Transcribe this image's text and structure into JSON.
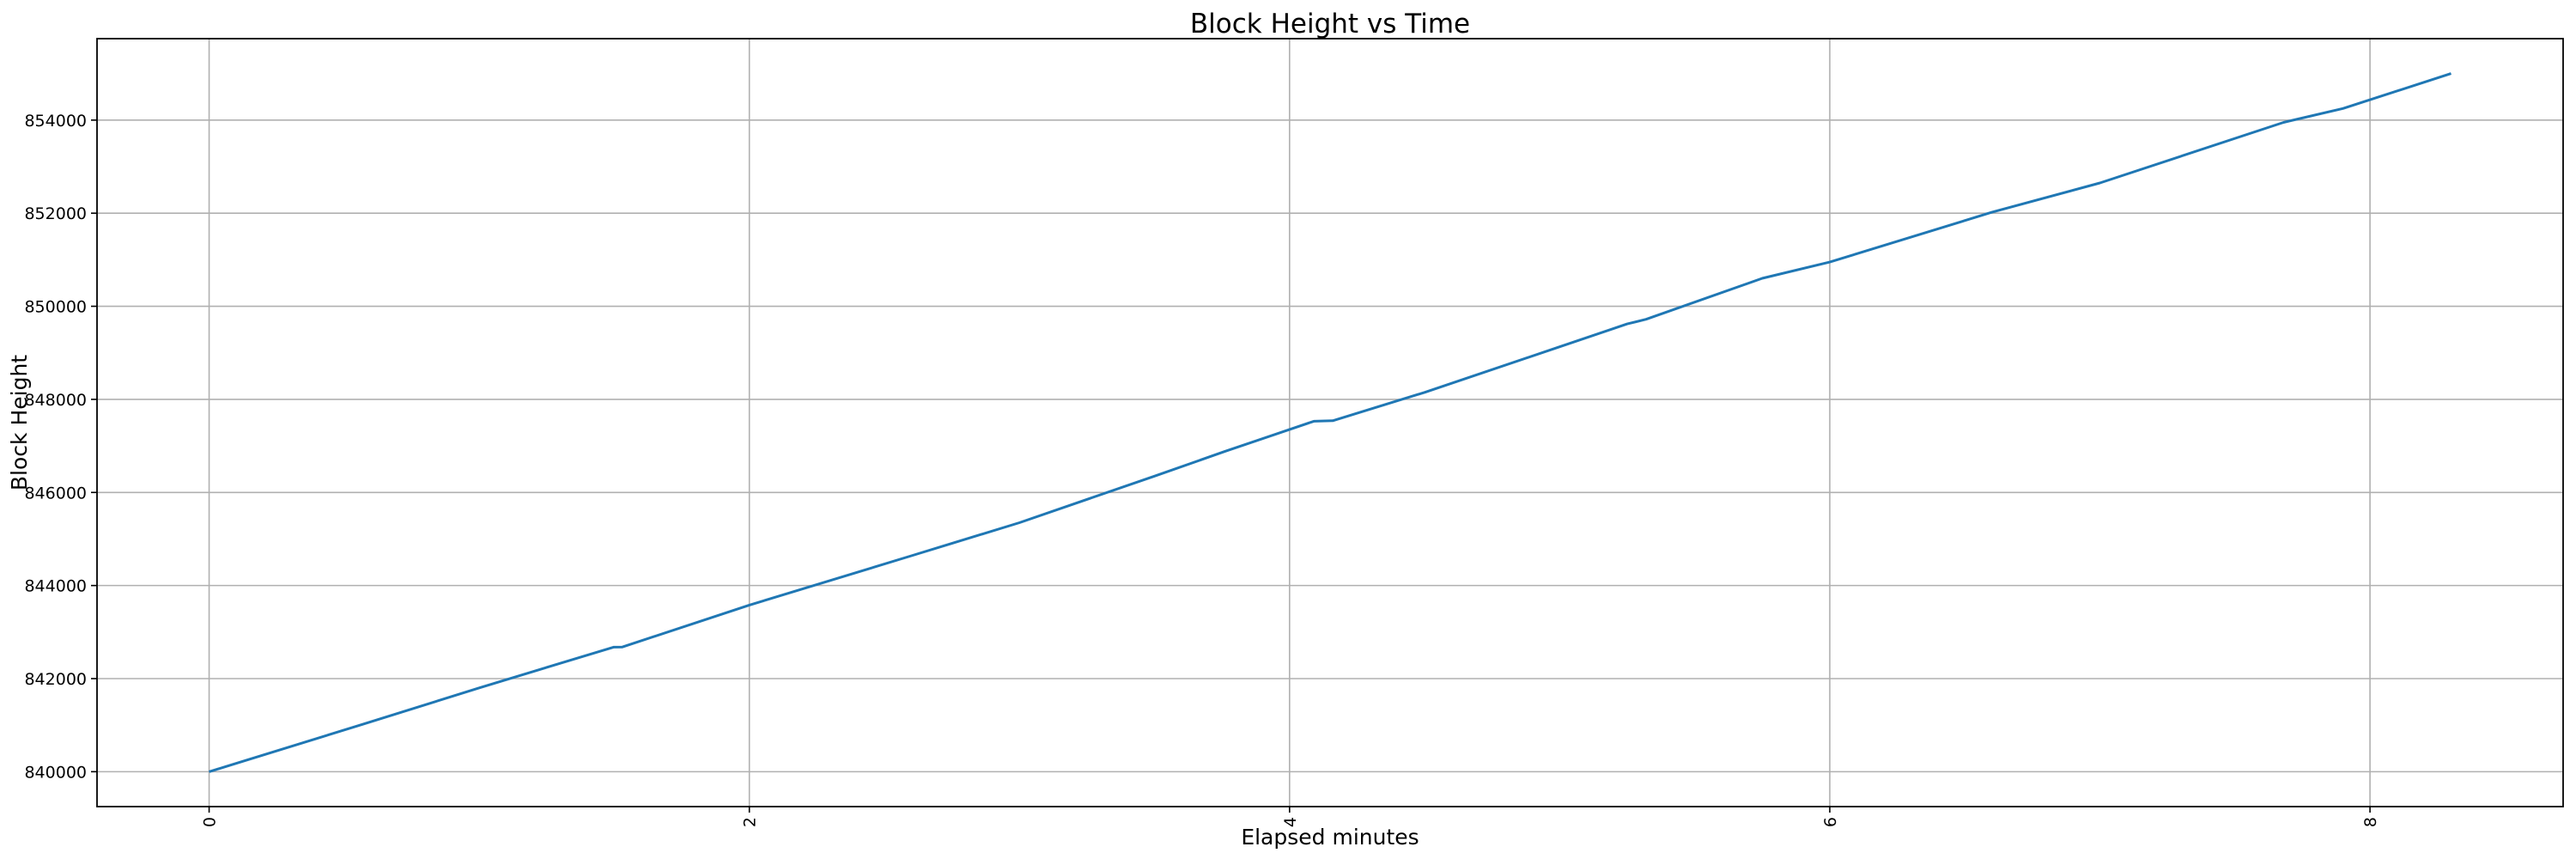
{
  "chart_data": {
    "type": "line",
    "title": "Block Height vs Time",
    "xlabel": "Elapsed minutes",
    "ylabel": "Block Height",
    "xlim": [
      -0.415,
      8.715
    ],
    "ylim": [
      839250,
      855750
    ],
    "xticks": [
      0,
      2,
      4,
      6,
      8
    ],
    "xtick_labels": [
      "0",
      "2",
      "4",
      "6",
      "8"
    ],
    "xtick_rotation": 90,
    "yticks": [
      840000,
      842000,
      844000,
      846000,
      848000,
      850000,
      852000,
      854000
    ],
    "ytick_labels": [
      "840000",
      "842000",
      "844000",
      "846000",
      "848000",
      "850000",
      "852000",
      "854000"
    ],
    "grid": true,
    "legend": "none",
    "series": [
      {
        "color": "#1f77b4",
        "x": [
          0,
          0.57,
          1.0,
          1.497,
          1.53,
          2.0,
          2.6,
          3.0,
          3.5,
          3.76,
          4.09,
          4.16,
          4.5,
          5.0,
          5.25,
          5.32,
          5.75,
          6.0,
          6.6,
          7.0,
          7.68,
          7.9,
          8.3
        ],
        "y": [
          840000,
          841020,
          841800,
          842675,
          842680,
          843580,
          844640,
          845350,
          846350,
          846880,
          847530,
          847540,
          848150,
          849130,
          849620,
          849720,
          850600,
          850950,
          852020,
          852650,
          853950,
          854250,
          855000
        ]
      }
    ]
  }
}
